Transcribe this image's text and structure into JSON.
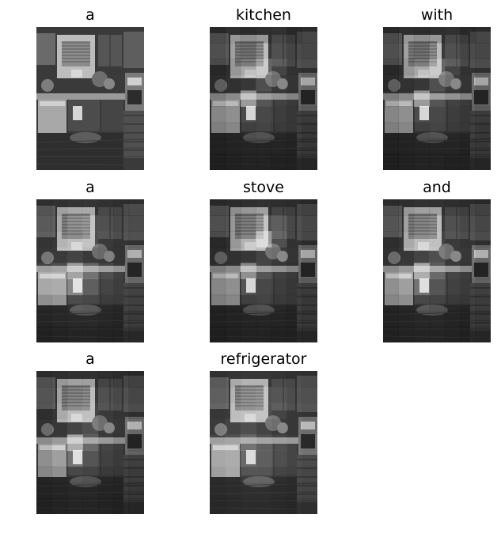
{
  "figure": {
    "panels": [
      {
        "word": "a",
        "attention": "none"
      },
      {
        "word": "kitchen",
        "attention": "sparse"
      },
      {
        "word": "with",
        "attention": "sparse"
      },
      {
        "word": "a",
        "attention": "spread"
      },
      {
        "word": "stove",
        "attention": "window"
      },
      {
        "word": "and",
        "attention": "counter"
      },
      {
        "word": "a",
        "attention": "counter"
      },
      {
        "word": "refrigerator",
        "attention": "broad"
      }
    ]
  }
}
